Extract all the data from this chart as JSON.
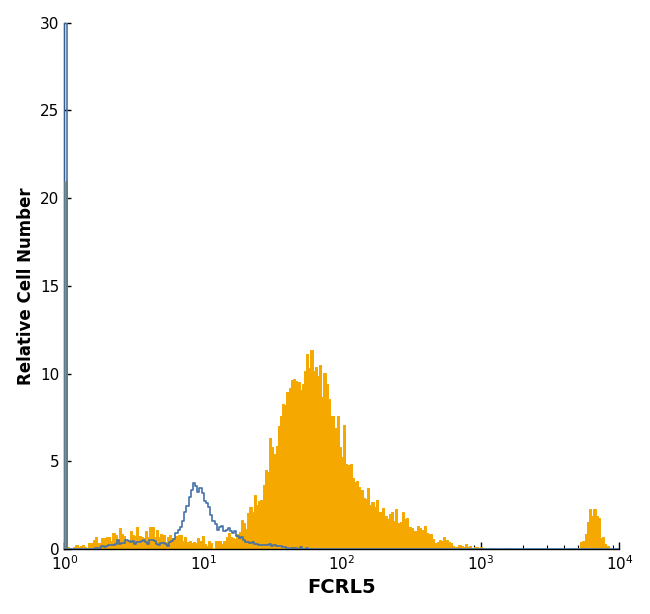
{
  "title": "",
  "xlabel": "FCRL5",
  "ylabel": "Relative Cell Number",
  "xlim_log": [
    1,
    10000
  ],
  "ylim": [
    0,
    30
  ],
  "yticks": [
    0,
    5,
    10,
    15,
    20,
    25,
    30
  ],
  "blue_color": "#4472a8",
  "orange_color": "#f5a800",
  "background_color": "#ffffff",
  "xlabel_fontsize": 14,
  "ylabel_fontsize": 12,
  "tick_fontsize": 11,
  "blue_linewidth": 1.2,
  "orange_linewidth": 0.7,
  "blue_max": 30,
  "orange_max": 21
}
